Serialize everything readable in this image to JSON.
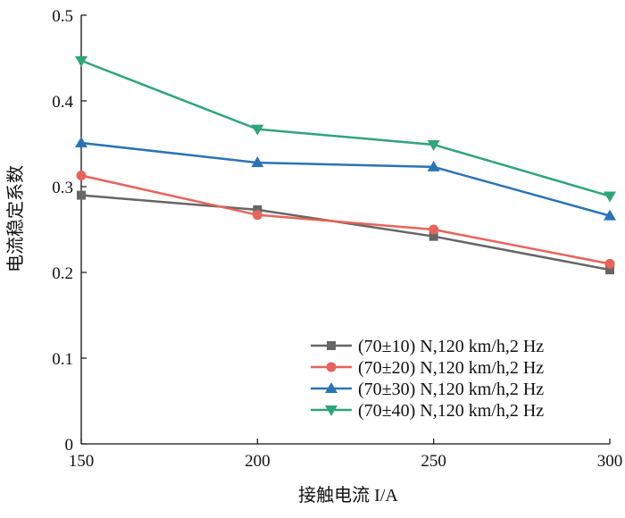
{
  "chart_data": {
    "type": "line",
    "title": "",
    "xlabel": "接触电流 I/A",
    "ylabel": "电流稳定系数",
    "x": [
      150,
      200,
      250,
      300
    ],
    "xlim": [
      150,
      300
    ],
    "ylim": [
      0,
      0.5
    ],
    "xticks": [
      "150",
      "200",
      "250",
      "300"
    ],
    "yticks": [
      "0",
      "0.1",
      "0.2",
      "0.3",
      "0.4",
      "0.5"
    ],
    "grid": false,
    "legend_position": "bottom-right",
    "series": [
      {
        "name": "(70±10) N,120 km/h,2 Hz",
        "marker": "square",
        "color": "#666666",
        "values": [
          0.29,
          0.273,
          0.242,
          0.203
        ]
      },
      {
        "name": "(70±20) N,120 km/h,2 Hz",
        "marker": "circle",
        "color": "#e8635a",
        "values": [
          0.313,
          0.267,
          0.25,
          0.21
        ]
      },
      {
        "name": "(70±30) N,120 km/h,2 Hz",
        "marker": "triangle-up",
        "color": "#2a74b5",
        "values": [
          0.351,
          0.328,
          0.323,
          0.266
        ]
      },
      {
        "name": "(70±40) N,120 km/h,2 Hz",
        "marker": "triangle-down",
        "color": "#2ea57a",
        "values": [
          0.447,
          0.367,
          0.349,
          0.289
        ]
      }
    ]
  }
}
